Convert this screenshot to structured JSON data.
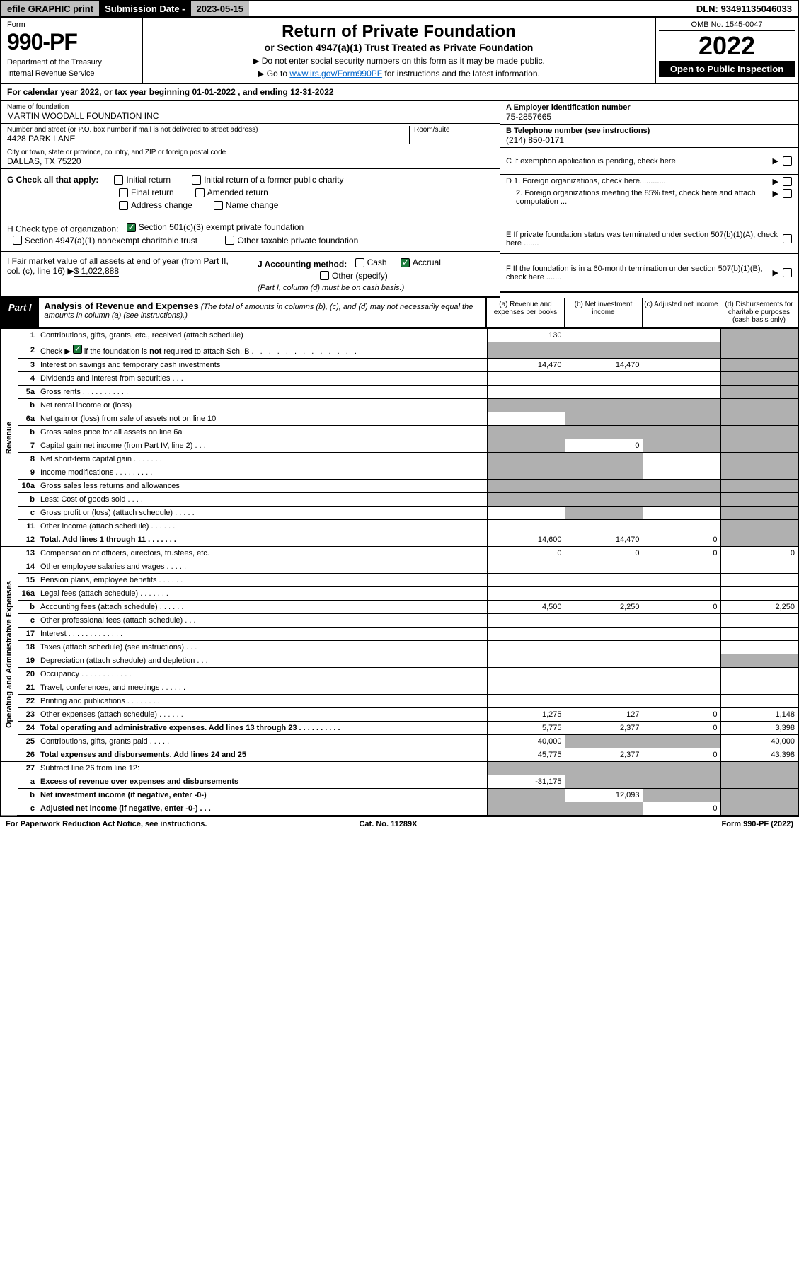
{
  "topbar": {
    "efile": "efile GRAPHIC print",
    "sublabel": "Submission Date - ",
    "subdate": "2023-05-15",
    "dln": "DLN: 93491135046033"
  },
  "header": {
    "form": "Form",
    "formnum": "990-PF",
    "dept": "Department of the Treasury",
    "irs": "Internal Revenue Service",
    "title": "Return of Private Foundation",
    "subtitle": "or Section 4947(a)(1) Trust Treated as Private Foundation",
    "note1": "▶ Do not enter social security numbers on this form as it may be made public.",
    "note2": "▶ Go to ",
    "note2link": "www.irs.gov/Form990PF",
    "note2rest": " for instructions and the latest information.",
    "omb": "OMB No. 1545-0047",
    "year": "2022",
    "open": "Open to Public Inspection"
  },
  "calyear": "For calendar year 2022, or tax year beginning 01-01-2022                       , and ending 12-31-2022",
  "info": {
    "name_lbl": "Name of foundation",
    "name": "MARTIN WOODALL FOUNDATION INC",
    "addr_lbl": "Number and street (or P.O. box number if mail is not delivered to street address)",
    "addr": "4428 PARK LANE",
    "room_lbl": "Room/suite",
    "city_lbl": "City or town, state or province, country, and ZIP or foreign postal code",
    "city": "DALLAS, TX  75220",
    "A_lbl": "A Employer identification number",
    "A": "75-2857665",
    "B_lbl": "B Telephone number (see instructions)",
    "B": "(214) 850-0171",
    "C": "C If exemption application is pending, check here",
    "D1": "D 1. Foreign organizations, check here............",
    "D2": "2. Foreign organizations meeting the 85% test, check here and attach computation ...",
    "E": "E  If private foundation status was terminated under section 507(b)(1)(A), check here .......",
    "F": "F  If the foundation is in a 60-month termination under section 507(b)(1)(B), check here ......."
  },
  "G": {
    "label": "G Check all that apply:",
    "opts": [
      "Initial return",
      "Initial return of a former public charity",
      "Final return",
      "Amended return",
      "Address change",
      "Name change"
    ]
  },
  "H": {
    "label": "H Check type of organization:",
    "o1": "Section 501(c)(3) exempt private foundation",
    "o2": "Section 4947(a)(1) nonexempt charitable trust",
    "o3": "Other taxable private foundation"
  },
  "I": {
    "label": "I Fair market value of all assets at end of year (from Part II, col. (c), line 16)",
    "val": "$  1,022,888"
  },
  "J": {
    "label": "J Accounting method:",
    "cash": "Cash",
    "accrual": "Accrual",
    "other": "Other (specify)",
    "note": "(Part I, column (d) must be on cash basis.)"
  },
  "part1": {
    "label": "Part I",
    "title": "Analysis of Revenue and Expenses",
    "note": "(The total of amounts in columns (b), (c), and (d) may not necessarily equal the amounts in column (a) (see instructions).)",
    "cols": [
      "(a)   Revenue and expenses per books",
      "(b)   Net investment income",
      "(c)   Adjusted net income",
      "(d)  Disbursements for charitable purposes (cash basis only)"
    ]
  },
  "side": {
    "rev": "Revenue",
    "exp": "Operating and Administrative Expenses"
  },
  "rows": [
    {
      "n": "1",
      "d": "Contributions, gifts, grants, etc., received (attach schedule)",
      "a": "130",
      "b": "",
      "c": "",
      "dcol": "g"
    },
    {
      "n": "2",
      "d": "Check ▶ ☑ if the foundation is not required to attach Sch. B",
      "a": "g",
      "b": "g",
      "c": "g",
      "dcol": "g",
      "chk": true
    },
    {
      "n": "3",
      "d": "Interest on savings and temporary cash investments",
      "a": "14,470",
      "b": "14,470",
      "c": "",
      "dcol": "g"
    },
    {
      "n": "4",
      "d": "Dividends and interest from securities   .   .   .",
      "a": "",
      "b": "",
      "c": "",
      "dcol": "g"
    },
    {
      "n": "5a",
      "d": "Gross rents   .   .   .   .   .   .   .   .   .   .   .",
      "a": "",
      "b": "",
      "c": "",
      "dcol": "g"
    },
    {
      "n": "b",
      "d": "Net rental income or (loss)  ",
      "a": "g",
      "b": "g",
      "c": "g",
      "dcol": "g"
    },
    {
      "n": "6a",
      "d": "Net gain or (loss) from sale of assets not on line 10",
      "a": "",
      "b": "g",
      "c": "g",
      "dcol": "g"
    },
    {
      "n": "b",
      "d": "Gross sales price for all assets on line 6a",
      "a": "g",
      "b": "g",
      "c": "g",
      "dcol": "g"
    },
    {
      "n": "7",
      "d": "Capital gain net income (from Part IV, line 2)   .   .   .",
      "a": "g",
      "b": "0",
      "c": "g",
      "dcol": "g"
    },
    {
      "n": "8",
      "d": "Net short-term capital gain   .   .   .   .   .   .   .",
      "a": "g",
      "b": "g",
      "c": "",
      "dcol": "g"
    },
    {
      "n": "9",
      "d": "Income modifications   .   .   .   .   .   .   .   .   .",
      "a": "g",
      "b": "g",
      "c": "",
      "dcol": "g"
    },
    {
      "n": "10a",
      "d": "Gross sales less returns and allowances",
      "a": "g",
      "b": "g",
      "c": "g",
      "dcol": "g"
    },
    {
      "n": "b",
      "d": "Less: Cost of goods sold   .   .   .   .",
      "a": "g",
      "b": "g",
      "c": "g",
      "dcol": "g"
    },
    {
      "n": "c",
      "d": "Gross profit or (loss) (attach schedule)   .   .   .   .   .",
      "a": "",
      "b": "g",
      "c": "",
      "dcol": "g"
    },
    {
      "n": "11",
      "d": "Other income (attach schedule)   .   .   .   .   .   .",
      "a": "",
      "b": "",
      "c": "",
      "dcol": "g"
    },
    {
      "n": "12",
      "d": "Total. Add lines 1 through 11   .   .   .   .   .   .   .",
      "a": "14,600",
      "b": "14,470",
      "c": "0",
      "dcol": "g",
      "bold": true
    },
    {
      "n": "13",
      "d": "Compensation of officers, directors, trustees, etc.",
      "a": "0",
      "b": "0",
      "c": "0",
      "dcol": "0",
      "sec": "exp"
    },
    {
      "n": "14",
      "d": "Other employee salaries and wages   .   .   .   .   .",
      "a": "",
      "b": "",
      "c": "",
      "dcol": ""
    },
    {
      "n": "15",
      "d": "Pension plans, employee benefits   .   .   .   .   .   .",
      "a": "",
      "b": "",
      "c": "",
      "dcol": ""
    },
    {
      "n": "16a",
      "d": "Legal fees (attach schedule)   .   .   .   .   .   .   .",
      "a": "",
      "b": "",
      "c": "",
      "dcol": ""
    },
    {
      "n": "b",
      "d": "Accounting fees (attach schedule)   .   .   .   .   .   .",
      "a": "4,500",
      "b": "2,250",
      "c": "0",
      "dcol": "2,250"
    },
    {
      "n": "c",
      "d": "Other professional fees (attach schedule)   .   .   .",
      "a": "",
      "b": "",
      "c": "",
      "dcol": ""
    },
    {
      "n": "17",
      "d": "Interest   .   .   .   .   .   .   .   .   .   .   .   .   .",
      "a": "",
      "b": "",
      "c": "",
      "dcol": ""
    },
    {
      "n": "18",
      "d": "Taxes (attach schedule) (see instructions)   .   .   .",
      "a": "",
      "b": "",
      "c": "",
      "dcol": ""
    },
    {
      "n": "19",
      "d": "Depreciation (attach schedule) and depletion   .   .   .",
      "a": "",
      "b": "",
      "c": "",
      "dcol": "g"
    },
    {
      "n": "20",
      "d": "Occupancy   .   .   .   .   .   .   .   .   .   .   .   .",
      "a": "",
      "b": "",
      "c": "",
      "dcol": ""
    },
    {
      "n": "21",
      "d": "Travel, conferences, and meetings   .   .   .   .   .   .",
      "a": "",
      "b": "",
      "c": "",
      "dcol": ""
    },
    {
      "n": "22",
      "d": "Printing and publications   .   .   .   .   .   .   .   .",
      "a": "",
      "b": "",
      "c": "",
      "dcol": ""
    },
    {
      "n": "23",
      "d": "Other expenses (attach schedule)   .   .   .   .   .   .",
      "a": "1,275",
      "b": "127",
      "c": "0",
      "dcol": "1,148"
    },
    {
      "n": "24",
      "d": "Total operating and administrative expenses. Add lines 13 through 23   .   .   .   .   .   .   .   .   .   .",
      "a": "5,775",
      "b": "2,377",
      "c": "0",
      "dcol": "3,398",
      "bold": true
    },
    {
      "n": "25",
      "d": "Contributions, gifts, grants paid   .   .   .   .   .",
      "a": "40,000",
      "b": "g",
      "c": "g",
      "dcol": "40,000"
    },
    {
      "n": "26",
      "d": "Total expenses and disbursements. Add lines 24 and 25",
      "a": "45,775",
      "b": "2,377",
      "c": "0",
      "dcol": "43,398",
      "bold": true
    },
    {
      "n": "27",
      "d": "Subtract line 26 from line 12:",
      "a": "g",
      "b": "g",
      "c": "g",
      "dcol": "g",
      "sec": "end"
    },
    {
      "n": "a",
      "d": "Excess of revenue over expenses and disbursements",
      "a": "-31,175",
      "b": "g",
      "c": "g",
      "dcol": "g",
      "bold": true
    },
    {
      "n": "b",
      "d": "Net investment income (if negative, enter -0-)",
      "a": "g",
      "b": "12,093",
      "c": "g",
      "dcol": "g",
      "bold": true
    },
    {
      "n": "c",
      "d": "Adjusted net income (if negative, enter -0-)   .   .   .",
      "a": "g",
      "b": "g",
      "c": "0",
      "dcol": "g",
      "bold": true
    }
  ],
  "footer": {
    "l": "For Paperwork Reduction Act Notice, see instructions.",
    "c": "Cat. No. 11289X",
    "r": "Form 990-PF (2022)"
  }
}
